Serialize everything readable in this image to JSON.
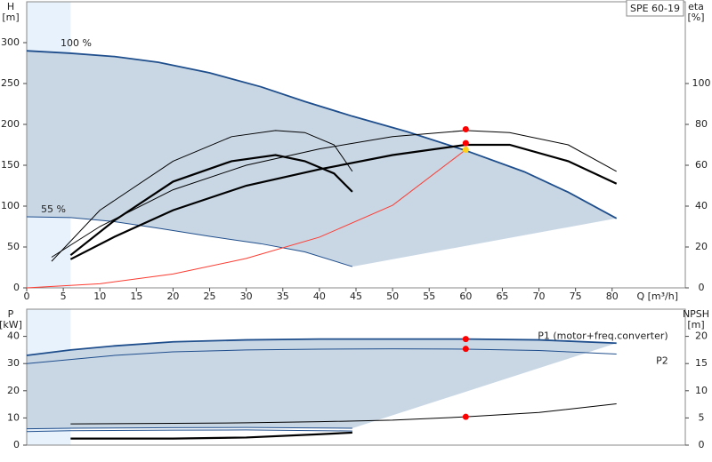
{
  "chart_data": [
    {
      "type": "line",
      "title": "SPE 60-19",
      "ylabel": [
        "H",
        "[m]"
      ],
      "y2label": [
        "eta",
        "[%]"
      ],
      "xlabel": "Q [m³/h]",
      "xlim": [
        0,
        90
      ],
      "xticks": [
        0,
        5,
        10,
        15,
        20,
        25,
        30,
        35,
        40,
        45,
        50,
        55,
        60,
        65,
        70,
        75,
        80
      ],
      "ylim": [
        0,
        350
      ],
      "yticks": [
        0,
        50,
        100,
        150,
        200,
        250,
        300
      ],
      "y2lim": [
        0,
        140
      ],
      "y2ticks": [
        0,
        20,
        40,
        60,
        80,
        100
      ],
      "series": [
        {
          "name": "100 %",
          "color": "#1f4e8c",
          "x": [
            0,
            6,
            12,
            18,
            25,
            32,
            38,
            44.5,
            52,
            60,
            68,
            74,
            80.6
          ],
          "values": [
            290,
            287,
            283,
            276,
            263,
            246,
            228,
            210,
            191,
            168,
            142,
            117,
            85
          ]
        },
        {
          "name": "55 %",
          "color": "#1f4e8c",
          "x": [
            0,
            6,
            12,
            18,
            25,
            32,
            38,
            44.5
          ],
          "values": [
            87,
            86,
            81,
            73,
            63,
            54,
            44,
            26
          ]
        },
        {
          "color": "#000000",
          "axis": "y2",
          "x": [
            3.4,
            10,
            20,
            30,
            40,
            50,
            60,
            66,
            74,
            80.6
          ],
          "values": [
            15,
            30,
            48,
            60,
            68,
            74,
            77,
            76,
            70,
            57
          ]
        },
        {
          "color": "#000000",
          "axis": "y2",
          "x": [
            6,
            12,
            20,
            30,
            40,
            50,
            60,
            66,
            74,
            80.6
          ],
          "values": [
            14,
            25,
            38,
            50,
            58,
            65,
            70,
            70,
            62,
            51
          ]
        },
        {
          "color": "#000000",
          "axis": "y2",
          "x": [
            3.4,
            10,
            20,
            28,
            34,
            38,
            42,
            44.5
          ],
          "values": [
            13,
            38,
            62,
            74,
            77,
            76,
            70,
            57
          ]
        },
        {
          "color": "#000000",
          "axis": "y2",
          "x": [
            6,
            12,
            20,
            28,
            34,
            38,
            42,
            44.5
          ],
          "values": [
            16,
            33,
            52,
            62,
            65,
            62,
            56,
            47
          ]
        },
        {
          "color": "#ff3b30",
          "x": [
            0,
            10,
            20,
            30,
            40,
            50,
            60
          ],
          "values": [
            0,
            5,
            17,
            36,
            62,
            101,
            169
          ]
        }
      ],
      "markers": [
        {
          "x": 60,
          "y": 194,
          "color": "#ff0000"
        },
        {
          "x": 60,
          "y": 177,
          "color": "#ff0000"
        },
        {
          "x": 60,
          "y": 169,
          "color": "#ffd21a"
        }
      ]
    },
    {
      "type": "line",
      "ylabel": [
        "P",
        "[kW]"
      ],
      "y2label": [
        "NPSH",
        "[m]"
      ],
      "xlim": [
        0,
        90
      ],
      "ylim": [
        0,
        50
      ],
      "yticks": [
        0,
        10,
        20,
        30,
        40
      ],
      "y2lim": [
        0,
        25
      ],
      "y2ticks": [
        0,
        5,
        10,
        15,
        20
      ],
      "series": [
        {
          "name": "P1 (motor+freq.converter)",
          "color": "#1f4e8c",
          "x": [
            0,
            6,
            12,
            20,
            30,
            40,
            50,
            60,
            70,
            80.6
          ],
          "values": [
            33,
            35,
            36.5,
            38,
            38.7,
            39,
            39,
            39,
            38.7,
            37.5
          ]
        },
        {
          "name": "P2",
          "color": "#1f4e8c",
          "x": [
            0,
            6,
            12,
            20,
            30,
            40,
            50,
            60,
            70,
            80.6
          ],
          "values": [
            30,
            31.5,
            33,
            34.3,
            35,
            35.3,
            35.4,
            35.3,
            34.8,
            33.5
          ]
        },
        {
          "color": "#1f4e8c",
          "x": [
            0,
            6,
            20,
            30,
            44.5
          ],
          "values": [
            6,
            6.2,
            6.4,
            6.5,
            6.2
          ]
        },
        {
          "color": "#1f4e8c",
          "x": [
            0,
            6,
            20,
            30,
            44.5
          ],
          "values": [
            5,
            5.3,
            5.5,
            5.6,
            5.2
          ]
        },
        {
          "color": "#000000",
          "axis": "y2",
          "x": [
            6,
            20,
            30,
            40,
            50,
            60,
            70,
            80.6
          ],
          "values": [
            3.9,
            4,
            4.1,
            4.3,
            4.6,
            5.2,
            6,
            7.6
          ]
        },
        {
          "color": "#000000",
          "axis": "y2",
          "x": [
            6,
            20,
            30,
            40,
            44.5
          ],
          "values": [
            1.2,
            1.2,
            1.4,
            2,
            2.3
          ]
        }
      ],
      "markers": [
        {
          "x": 60,
          "y": 39,
          "color": "#ff0000"
        },
        {
          "x": 60,
          "y": 35.4,
          "color": "#ff0000"
        },
        {
          "x": 60,
          "y": 5.2,
          "color": "#ff0000",
          "axis": "y2"
        }
      ]
    }
  ]
}
